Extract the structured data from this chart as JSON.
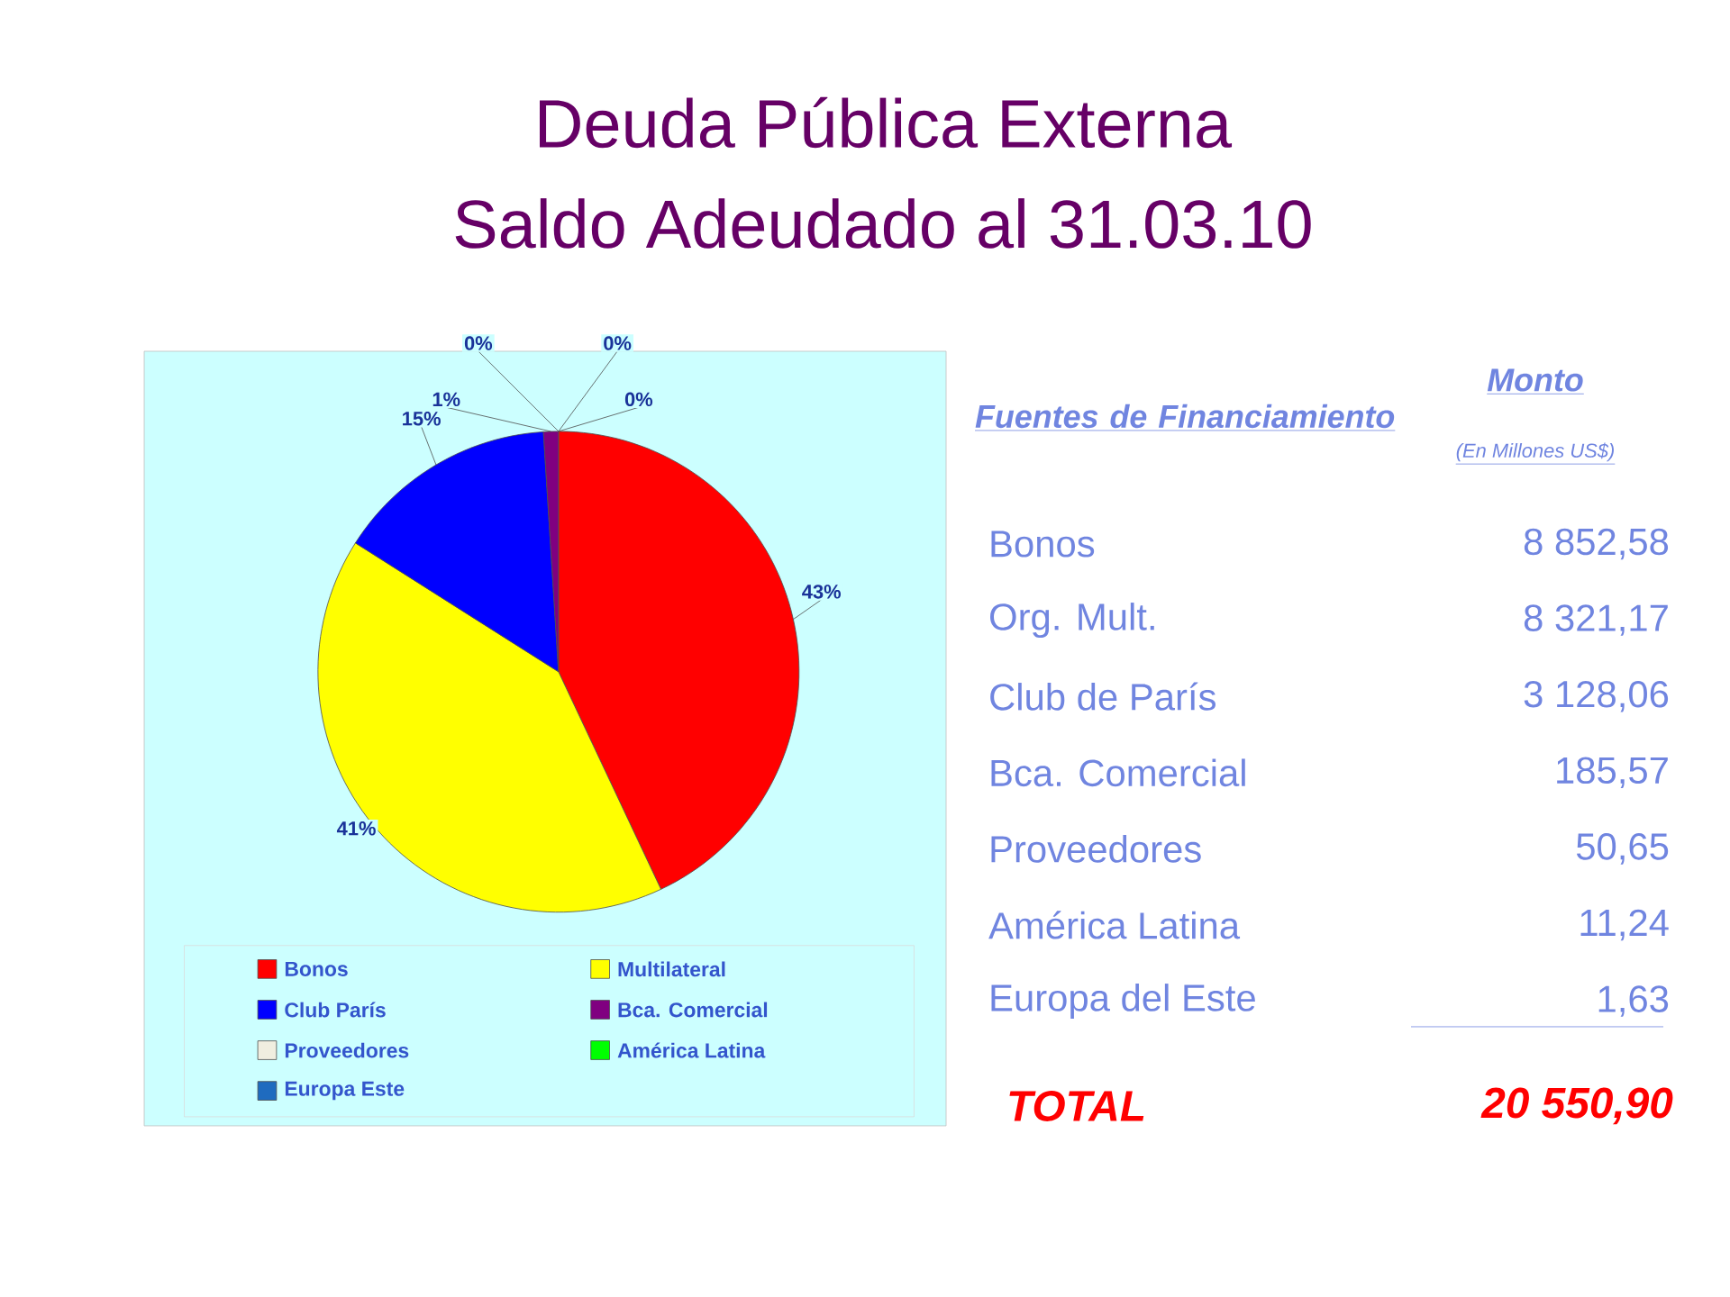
{
  "chart_data": {
    "type": "pie",
    "title": "Deuda Pública Externa",
    "subtitle": "Saldo Adeudado al 31.03.10",
    "categories": [
      "Bonos",
      "Multilateral",
      "Club París",
      "Bca. Comercial",
      "Proveedores",
      "América Latina",
      "Europa Este"
    ],
    "values": [
      43,
      41,
      15,
      1,
      0,
      0,
      0
    ],
    "value_labels": [
      "43%",
      "41%",
      "15%",
      "1%",
      "0%",
      "0%",
      "0%"
    ],
    "colors": [
      "#ff0000",
      "#ffff00",
      "#0000ff",
      "#800080",
      "#f0eee0",
      "#00ff00",
      "#1f6bbf"
    ],
    "legend": "bottom",
    "annotations": [
      "Fuentes de Financiamiento",
      "Monto",
      "(En Millones US$)",
      "Bonos",
      "8 852,58",
      "Org. Mult.",
      "8 321,17",
      "Club de París",
      "3 128,06",
      "Bca. Comercial",
      "185,57",
      "Proveedores",
      "50,65",
      "América Latina",
      "11,24",
      "Europa del Este",
      "1,63",
      "TOTAL",
      "20 550,90"
    ]
  }
}
